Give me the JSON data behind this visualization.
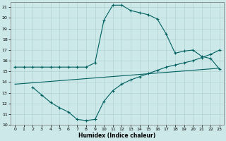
{
  "xlabel": "Humidex (Indice chaleur)",
  "bg_color": "#cce8e8",
  "grid_color": "#aacece",
  "line_color": "#006060",
  "xlim": [
    -0.5,
    23.5
  ],
  "ylim": [
    10,
    21.5
  ],
  "yticks": [
    10,
    11,
    12,
    13,
    14,
    15,
    16,
    17,
    18,
    19,
    20,
    21
  ],
  "xticks": [
    0,
    1,
    2,
    3,
    4,
    5,
    6,
    7,
    8,
    9,
    10,
    11,
    12,
    13,
    14,
    15,
    16,
    17,
    18,
    19,
    20,
    21,
    22,
    23
  ],
  "line1_x": [
    0,
    1,
    2,
    3,
    4,
    5,
    6,
    7,
    8,
    9,
    10,
    11,
    12,
    13,
    14,
    15,
    16,
    17,
    18,
    19,
    20,
    21,
    22,
    23
  ],
  "line1_y": [
    15.4,
    15.4,
    15.4,
    15.4,
    15.4,
    15.4,
    15.4,
    15.4,
    15.4,
    15.8,
    19.8,
    21.2,
    21.2,
    20.7,
    20.5,
    20.3,
    19.9,
    18.5,
    16.7,
    16.9,
    17.0,
    16.4,
    16.2,
    15.2
  ],
  "line2_x": [
    2,
    3,
    4,
    5,
    6,
    7,
    8,
    9,
    10,
    11,
    12,
    13,
    14,
    15,
    16,
    17,
    18,
    19,
    20,
    21,
    22,
    23
  ],
  "line2_y": [
    13.5,
    12.8,
    12.1,
    11.6,
    11.2,
    10.5,
    10.4,
    10.5,
    12.2,
    13.2,
    13.8,
    14.2,
    14.5,
    14.8,
    15.1,
    15.4,
    15.6,
    15.8,
    16.0,
    16.3,
    16.6,
    17.0
  ],
  "line3_x": [
    0,
    23
  ],
  "line3_y": [
    13.8,
    15.3
  ]
}
